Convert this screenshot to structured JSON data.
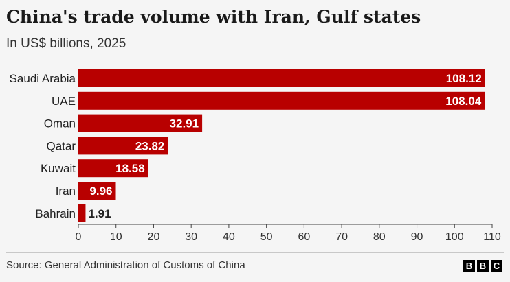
{
  "title": "China's trade volume with Iran, Gulf states",
  "subtitle": "In US$ billions, 2025",
  "source": "Source: General Administration of Customs of China",
  "logo": {
    "letters": [
      "B",
      "B",
      "C"
    ]
  },
  "colors": {
    "bar": "#b80000",
    "label_inside": "#ffffff",
    "label_outside": "#222222"
  },
  "chart_data": {
    "type": "bar",
    "orientation": "horizontal",
    "categories": [
      "Saudi Arabia",
      "UAE",
      "Oman",
      "Qatar",
      "Kuwait",
      "Iran",
      "Bahrain"
    ],
    "values": [
      108.12,
      108.04,
      32.91,
      23.82,
      18.58,
      9.96,
      1.91
    ],
    "value_labels": [
      "108.12",
      "108.04",
      "32.91",
      "23.82",
      "18.58",
      "9.96",
      "1.91"
    ],
    "xlim": [
      0,
      110
    ],
    "xticks": [
      0,
      10,
      20,
      30,
      40,
      50,
      60,
      70,
      80,
      90,
      100,
      110
    ],
    "grid": false,
    "legend": "none"
  }
}
